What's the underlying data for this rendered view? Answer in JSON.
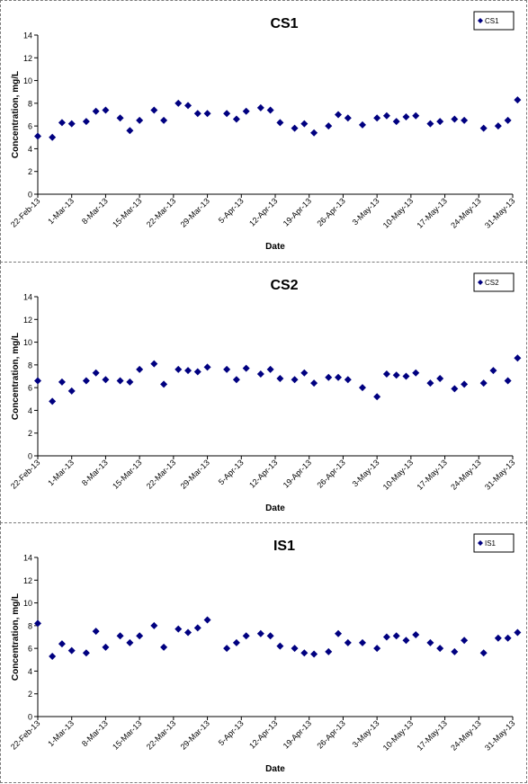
{
  "chart_data": [
    {
      "type": "scatter",
      "title": "CS1",
      "xlabel": "Date",
      "ylabel": "Concentration, mg/L",
      "legend": "top-right",
      "grid": false,
      "ylim": [
        0,
        14
      ],
      "yticks": [
        0,
        2,
        4,
        6,
        8,
        10,
        12,
        14
      ],
      "xlim": [
        "2013-02-22",
        "2013-05-31"
      ],
      "xticks": [
        "22-Feb-13",
        "1-Mar-13",
        "8-Mar-13",
        "15-Mar-13",
        "22-Mar-13",
        "29-Mar-13",
        "5-Apr-13",
        "12-Apr-13",
        "19-Apr-13",
        "26-Apr-13",
        "3-May-13",
        "10-May-13",
        "17-May-13",
        "24-May-13",
        "31-May-13"
      ],
      "marker_color": "#000080",
      "series": [
        {
          "name": "CS1",
          "points": [
            {
              "x": "2013-02-22",
              "y": 5.1
            },
            {
              "x": "2013-02-25",
              "y": 5.0
            },
            {
              "x": "2013-02-27",
              "y": 6.3
            },
            {
              "x": "2013-03-01",
              "y": 6.2
            },
            {
              "x": "2013-03-04",
              "y": 6.4
            },
            {
              "x": "2013-03-06",
              "y": 7.3
            },
            {
              "x": "2013-03-08",
              "y": 7.4
            },
            {
              "x": "2013-03-11",
              "y": 6.7
            },
            {
              "x": "2013-03-13",
              "y": 5.6
            },
            {
              "x": "2013-03-15",
              "y": 6.5
            },
            {
              "x": "2013-03-18",
              "y": 7.4
            },
            {
              "x": "2013-03-20",
              "y": 6.5
            },
            {
              "x": "2013-03-23",
              "y": 8.0
            },
            {
              "x": "2013-03-25",
              "y": 7.8
            },
            {
              "x": "2013-03-27",
              "y": 7.1
            },
            {
              "x": "2013-03-29",
              "y": 7.1
            },
            {
              "x": "2013-04-02",
              "y": 7.1
            },
            {
              "x": "2013-04-04",
              "y": 6.6
            },
            {
              "x": "2013-04-06",
              "y": 7.3
            },
            {
              "x": "2013-04-09",
              "y": 7.6
            },
            {
              "x": "2013-04-11",
              "y": 7.4
            },
            {
              "x": "2013-04-13",
              "y": 6.3
            },
            {
              "x": "2013-04-16",
              "y": 5.8
            },
            {
              "x": "2013-04-18",
              "y": 6.2
            },
            {
              "x": "2013-04-20",
              "y": 5.4
            },
            {
              "x": "2013-04-23",
              "y": 6.0
            },
            {
              "x": "2013-04-25",
              "y": 7.0
            },
            {
              "x": "2013-04-27",
              "y": 6.7
            },
            {
              "x": "2013-04-30",
              "y": 6.1
            },
            {
              "x": "2013-05-03",
              "y": 6.7
            },
            {
              "x": "2013-05-05",
              "y": 6.9
            },
            {
              "x": "2013-05-07",
              "y": 6.4
            },
            {
              "x": "2013-05-09",
              "y": 6.8
            },
            {
              "x": "2013-05-11",
              "y": 6.9
            },
            {
              "x": "2013-05-14",
              "y": 6.2
            },
            {
              "x": "2013-05-16",
              "y": 6.4
            },
            {
              "x": "2013-05-19",
              "y": 6.6
            },
            {
              "x": "2013-05-21",
              "y": 6.5
            },
            {
              "x": "2013-05-25",
              "y": 5.8
            },
            {
              "x": "2013-05-28",
              "y": 6.0
            },
            {
              "x": "2013-05-30",
              "y": 6.5
            },
            {
              "x": "2013-06-01",
              "y": 8.3
            }
          ]
        }
      ]
    },
    {
      "type": "scatter",
      "title": "CS2",
      "xlabel": "Date",
      "ylabel": "Concentration, mg/L",
      "legend": "top-right",
      "grid": false,
      "ylim": [
        0,
        14
      ],
      "yticks": [
        0,
        2,
        4,
        6,
        8,
        10,
        12,
        14
      ],
      "xlim": [
        "2013-02-22",
        "2013-05-31"
      ],
      "xticks": [
        "22-Feb-13",
        "1-Mar-13",
        "8-Mar-13",
        "15-Mar-13",
        "22-Mar-13",
        "29-Mar-13",
        "5-Apr-13",
        "12-Apr-13",
        "19-Apr-13",
        "26-Apr-13",
        "3-May-13",
        "10-May-13",
        "17-May-13",
        "24-May-13",
        "31-May-13"
      ],
      "marker_color": "#000080",
      "series": [
        {
          "name": "CS2",
          "points": [
            {
              "x": "2013-02-22",
              "y": 6.6
            },
            {
              "x": "2013-02-25",
              "y": 4.8
            },
            {
              "x": "2013-02-27",
              "y": 6.5
            },
            {
              "x": "2013-03-01",
              "y": 5.7
            },
            {
              "x": "2013-03-04",
              "y": 6.6
            },
            {
              "x": "2013-03-06",
              "y": 7.3
            },
            {
              "x": "2013-03-08",
              "y": 6.7
            },
            {
              "x": "2013-03-11",
              "y": 6.6
            },
            {
              "x": "2013-03-13",
              "y": 6.5
            },
            {
              "x": "2013-03-15",
              "y": 7.6
            },
            {
              "x": "2013-03-18",
              "y": 8.1
            },
            {
              "x": "2013-03-20",
              "y": 6.3
            },
            {
              "x": "2013-03-23",
              "y": 7.6
            },
            {
              "x": "2013-03-25",
              "y": 7.5
            },
            {
              "x": "2013-03-27",
              "y": 7.4
            },
            {
              "x": "2013-03-29",
              "y": 7.8
            },
            {
              "x": "2013-04-02",
              "y": 7.6
            },
            {
              "x": "2013-04-04",
              "y": 6.7
            },
            {
              "x": "2013-04-06",
              "y": 7.7
            },
            {
              "x": "2013-04-09",
              "y": 7.2
            },
            {
              "x": "2013-04-11",
              "y": 7.6
            },
            {
              "x": "2013-04-13",
              "y": 6.8
            },
            {
              "x": "2013-04-16",
              "y": 6.7
            },
            {
              "x": "2013-04-18",
              "y": 7.3
            },
            {
              "x": "2013-04-20",
              "y": 6.4
            },
            {
              "x": "2013-04-23",
              "y": 6.9
            },
            {
              "x": "2013-04-25",
              "y": 6.9
            },
            {
              "x": "2013-04-27",
              "y": 6.7
            },
            {
              "x": "2013-04-30",
              "y": 6.0
            },
            {
              "x": "2013-05-03",
              "y": 5.2
            },
            {
              "x": "2013-05-05",
              "y": 7.2
            },
            {
              "x": "2013-05-07",
              "y": 7.1
            },
            {
              "x": "2013-05-09",
              "y": 7.0
            },
            {
              "x": "2013-05-11",
              "y": 7.3
            },
            {
              "x": "2013-05-14",
              "y": 6.4
            },
            {
              "x": "2013-05-16",
              "y": 6.8
            },
            {
              "x": "2013-05-19",
              "y": 5.9
            },
            {
              "x": "2013-05-21",
              "y": 6.3
            },
            {
              "x": "2013-05-25",
              "y": 6.4
            },
            {
              "x": "2013-05-27",
              "y": 7.5
            },
            {
              "x": "2013-05-30",
              "y": 6.6
            },
            {
              "x": "2013-06-01",
              "y": 8.6
            }
          ]
        }
      ]
    },
    {
      "type": "scatter",
      "title": "IS1",
      "xlabel": "Date",
      "ylabel": "Concentration, mg/L",
      "legend": "top-right",
      "grid": false,
      "ylim": [
        0,
        14
      ],
      "yticks": [
        0,
        2,
        4,
        6,
        8,
        10,
        12,
        14
      ],
      "xlim": [
        "2013-02-22",
        "2013-05-31"
      ],
      "xticks": [
        "22-Feb-13",
        "1-Mar-13",
        "8-Mar-13",
        "15-Mar-13",
        "22-Mar-13",
        "29-Mar-13",
        "5-Apr-13",
        "12-Apr-13",
        "19-Apr-13",
        "26-Apr-13",
        "3-May-13",
        "10-May-13",
        "17-May-13",
        "24-May-13",
        "31-May-13"
      ],
      "marker_color": "#000080",
      "series": [
        {
          "name": "IS1",
          "points": [
            {
              "x": "2013-02-22",
              "y": 8.2
            },
            {
              "x": "2013-02-25",
              "y": 5.3
            },
            {
              "x": "2013-02-27",
              "y": 6.4
            },
            {
              "x": "2013-03-01",
              "y": 5.8
            },
            {
              "x": "2013-03-04",
              "y": 5.6
            },
            {
              "x": "2013-03-06",
              "y": 7.5
            },
            {
              "x": "2013-03-08",
              "y": 6.1
            },
            {
              "x": "2013-03-11",
              "y": 7.1
            },
            {
              "x": "2013-03-13",
              "y": 6.5
            },
            {
              "x": "2013-03-15",
              "y": 7.1
            },
            {
              "x": "2013-03-18",
              "y": 8.0
            },
            {
              "x": "2013-03-20",
              "y": 6.1
            },
            {
              "x": "2013-03-23",
              "y": 7.7
            },
            {
              "x": "2013-03-25",
              "y": 7.4
            },
            {
              "x": "2013-03-27",
              "y": 7.8
            },
            {
              "x": "2013-03-29",
              "y": 8.5
            },
            {
              "x": "2013-04-02",
              "y": 6.0
            },
            {
              "x": "2013-04-04",
              "y": 6.5
            },
            {
              "x": "2013-04-06",
              "y": 7.1
            },
            {
              "x": "2013-04-09",
              "y": 7.3
            },
            {
              "x": "2013-04-11",
              "y": 7.1
            },
            {
              "x": "2013-04-13",
              "y": 6.2
            },
            {
              "x": "2013-04-16",
              "y": 6.0
            },
            {
              "x": "2013-04-18",
              "y": 5.6
            },
            {
              "x": "2013-04-20",
              "y": 5.5
            },
            {
              "x": "2013-04-23",
              "y": 5.7
            },
            {
              "x": "2013-04-25",
              "y": 7.3
            },
            {
              "x": "2013-04-27",
              "y": 6.5
            },
            {
              "x": "2013-04-30",
              "y": 6.5
            },
            {
              "x": "2013-05-03",
              "y": 6.0
            },
            {
              "x": "2013-05-05",
              "y": 7.0
            },
            {
              "x": "2013-05-07",
              "y": 7.1
            },
            {
              "x": "2013-05-09",
              "y": 6.7
            },
            {
              "x": "2013-05-11",
              "y": 7.2
            },
            {
              "x": "2013-05-14",
              "y": 6.5
            },
            {
              "x": "2013-05-16",
              "y": 6.0
            },
            {
              "x": "2013-05-19",
              "y": 5.7
            },
            {
              "x": "2013-05-21",
              "y": 6.7
            },
            {
              "x": "2013-05-25",
              "y": 5.6
            },
            {
              "x": "2013-05-28",
              "y": 6.9
            },
            {
              "x": "2013-05-30",
              "y": 6.9
            },
            {
              "x": "2013-06-01",
              "y": 7.4
            }
          ]
        }
      ]
    }
  ]
}
